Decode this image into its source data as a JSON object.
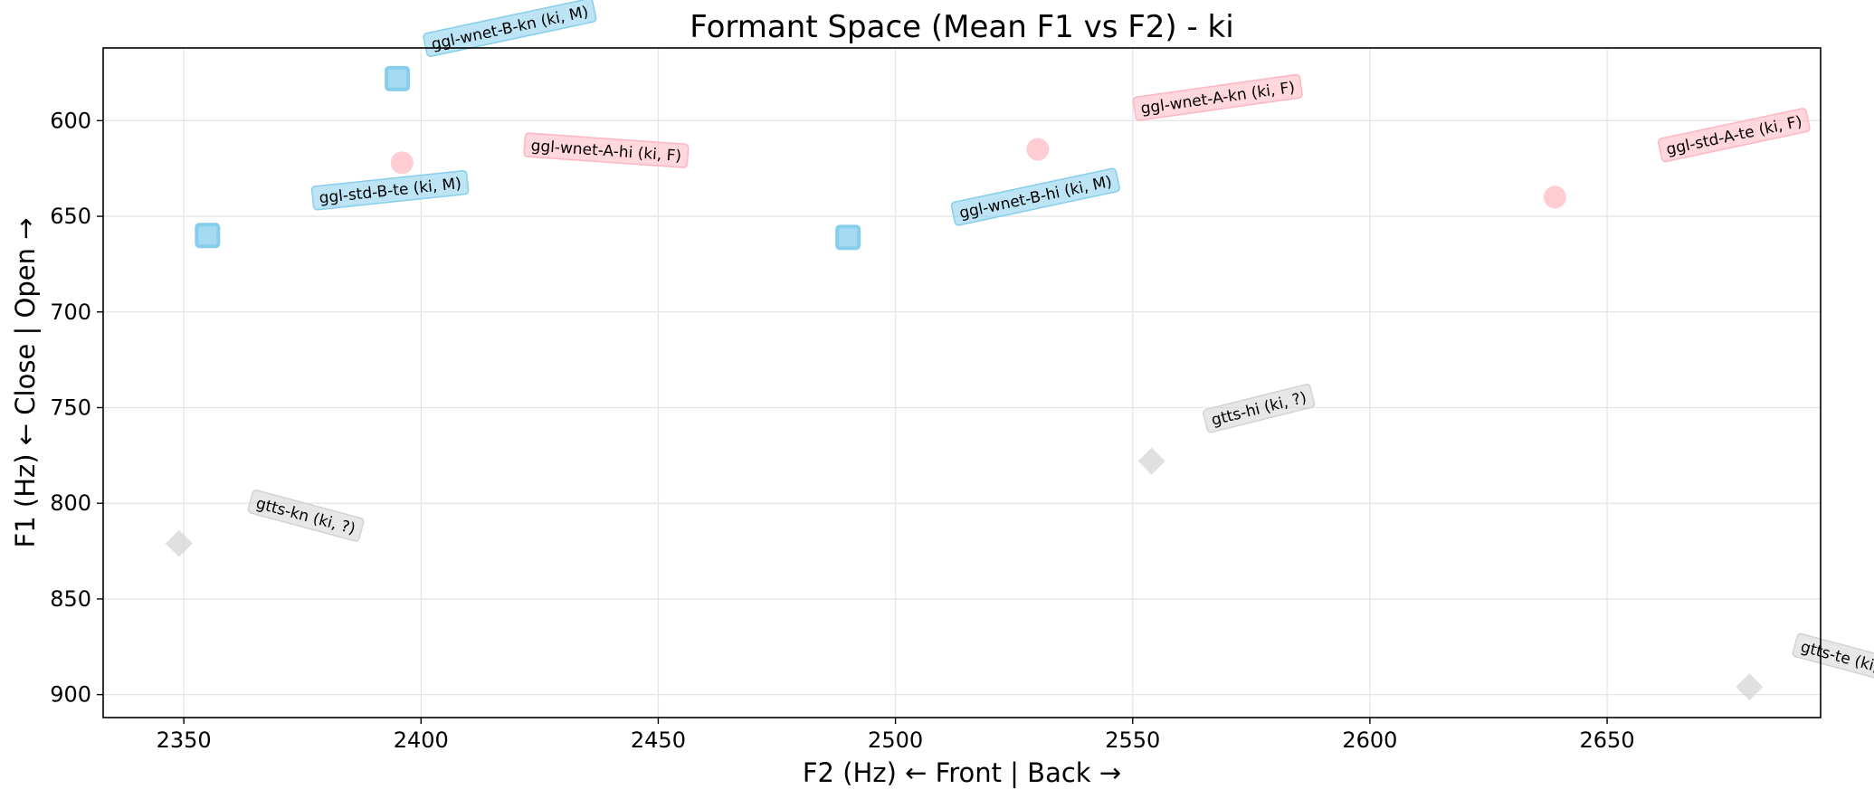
{
  "chart_data": {
    "type": "scatter",
    "title": "Formant Space (Mean F1 vs F2) - ki",
    "xlabel": "F2 (Hz) ← Front | Back →",
    "ylabel": "F1 (Hz) ← Close | Open →",
    "xlim": [
      2333,
      2695
    ],
    "ylim": [
      912,
      562
    ],
    "y_inverted": true,
    "grid": true,
    "x_ticks": [
      2350,
      2400,
      2450,
      2500,
      2550,
      2600,
      2650
    ],
    "y_ticks": [
      600,
      650,
      700,
      750,
      800,
      850,
      900
    ],
    "colors": {
      "M": "#87ceeb",
      "F": "#ffb6c1",
      "?": "#d3d3d3"
    },
    "points": [
      {
        "label": "ggl-wnet-B-kn (ki, M)",
        "group": "M",
        "marker": "square",
        "x": 2395,
        "y": 578,
        "label_dx": 0.02,
        "label_dy": -0.05,
        "label_rot": -12
      },
      {
        "label": "ggl-wnet-A-hi (ki, F)",
        "group": "F",
        "marker": "circle",
        "x": 2396,
        "y": 622,
        "label_dx": 0.075,
        "label_dy": -0.025,
        "label_rot": 4
      },
      {
        "label": "ggl-std-B-te (ki, M)",
        "group": "M",
        "marker": "square",
        "x": 2355,
        "y": 660,
        "label_dx": 0.065,
        "label_dy": -0.055,
        "label_rot": -6
      },
      {
        "label": "ggl-wnet-B-hi (ki, M)",
        "group": "M",
        "marker": "square",
        "x": 2490,
        "y": 661,
        "label_dx": 0.065,
        "label_dy": -0.035,
        "label_rot": -12
      },
      {
        "label": "ggl-wnet-A-kn (ki, F)",
        "group": "F",
        "marker": "circle",
        "x": 2530,
        "y": 615,
        "label_dx": 0.06,
        "label_dy": -0.06,
        "label_rot": -8
      },
      {
        "label": "ggl-std-A-te (ki, F)",
        "group": "F",
        "marker": "circle",
        "x": 2639,
        "y": 640,
        "label_dx": 0.065,
        "label_dy": -0.07,
        "label_rot": -12
      },
      {
        "label": "gtts-hi (ki, ?)",
        "group": "?",
        "marker": "diamond",
        "x": 2554,
        "y": 778,
        "label_dx": 0.035,
        "label_dy": -0.06,
        "label_rot": -14
      },
      {
        "label": "gtts-kn (ki, ?)",
        "group": "?",
        "marker": "diamond",
        "x": 2349,
        "y": 821,
        "label_dx": 0.045,
        "label_dy": -0.06,
        "label_rot": 15
      },
      {
        "label": "gtts-te (ki, ?)",
        "group": "?",
        "marker": "diamond",
        "x": 2680,
        "y": 896,
        "label_dx": 0.03,
        "label_dy": -0.06,
        "label_rot": 15
      }
    ]
  }
}
